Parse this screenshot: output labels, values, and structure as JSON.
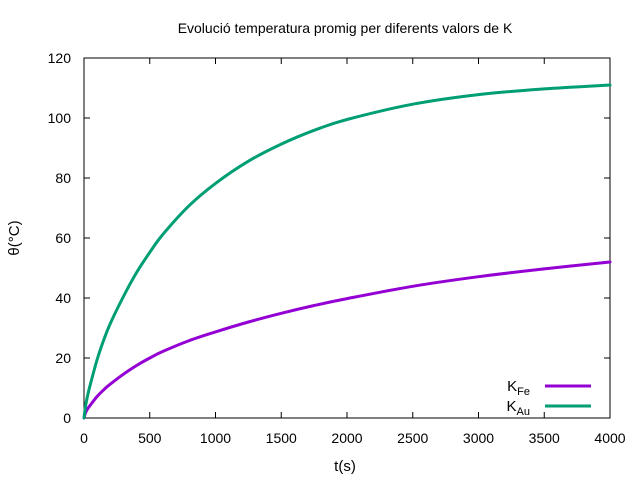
{
  "chart_data": {
    "type": "line",
    "title": "Evolució temperatura promig per diferents valors de K",
    "xlabel": "t(s)",
    "ylabel": "θ(°C)",
    "xlim": [
      0,
      4000
    ],
    "ylim": [
      0,
      120
    ],
    "xticks": [
      0,
      500,
      1000,
      1500,
      2000,
      2500,
      3000,
      3500,
      4000
    ],
    "yticks": [
      0,
      20,
      40,
      60,
      80,
      100,
      120
    ],
    "grid": false,
    "legend_position": "bottom-right",
    "series": [
      {
        "name": "K",
        "name_sub": "Fe",
        "color": "#9400d3",
        "x": [
          0,
          10,
          25,
          50,
          100,
          150,
          200,
          300,
          400,
          500,
          600,
          800,
          1000,
          1250,
          1500,
          1750,
          2000,
          2500,
          3000,
          3500,
          4000
        ],
        "y": [
          0,
          1.6,
          2.9,
          4.4,
          7.2,
          9.4,
          11.3,
          14.6,
          17.5,
          20.0,
          22.2,
          25.8,
          28.7,
          32.0,
          34.9,
          37.5,
          39.8,
          43.9,
          47.1,
          49.7,
          52.0
        ]
      },
      {
        "name": "K",
        "name_sub": "Au",
        "color": "#009e73",
        "x": [
          0,
          10,
          25,
          50,
          100,
          150,
          200,
          300,
          400,
          500,
          600,
          800,
          1000,
          1250,
          1500,
          1750,
          2000,
          2500,
          3000,
          3500,
          4000
        ],
        "y": [
          0,
          3.5,
          7.0,
          11.5,
          19.5,
          26.0,
          31.5,
          40.5,
          48.5,
          55.2,
          61.2,
          70.8,
          78.2,
          85.6,
          91.3,
          95.9,
          99.5,
          104.6,
          107.8,
          109.7,
          111.0
        ]
      }
    ]
  }
}
